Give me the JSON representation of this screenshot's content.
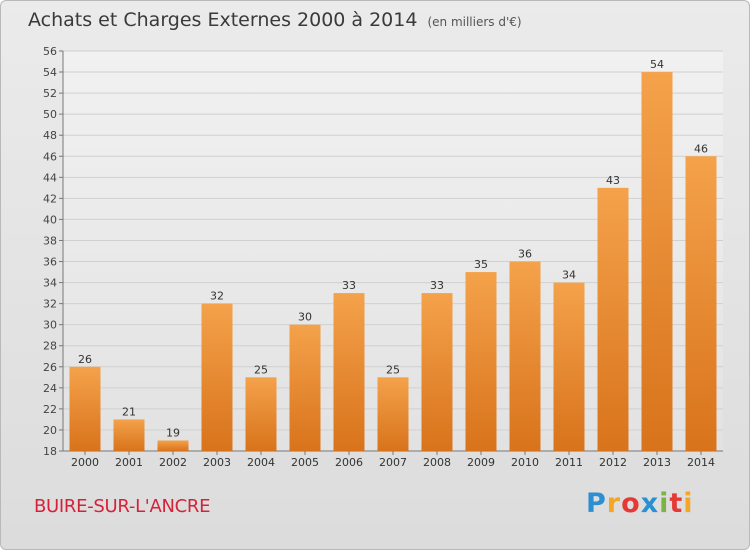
{
  "header": {
    "title": "Achats et Charges Externes 2000 à 2014",
    "subtitle": "(en milliers d'€)"
  },
  "footer": {
    "commune": "BUIRE-SUR-L'ANCRE",
    "logo_letters": [
      "P",
      "r",
      "o",
      "x",
      "i",
      "t",
      "i"
    ],
    "logo_colors": [
      "#2b8fd1",
      "#f5a623",
      "#e53935",
      "#2b8fd1",
      "#7cb342",
      "#e53935",
      "#f5a623"
    ]
  },
  "colors": {
    "bar_top": "#f4a24b",
    "bar_bottom": "#d8731b",
    "title": "#3a3a3a",
    "commune": "#d5223a"
  },
  "chart_data": {
    "type": "bar",
    "title": "Achats et Charges Externes 2000 à 2014",
    "subtitle": "(en milliers d'€)",
    "categories": [
      "2000",
      "2001",
      "2002",
      "2003",
      "2004",
      "2005",
      "2006",
      "2007",
      "2008",
      "2009",
      "2010",
      "2011",
      "2012",
      "2013",
      "2014"
    ],
    "values": [
      26,
      21,
      19,
      32,
      25,
      30,
      33,
      25,
      33,
      35,
      36,
      34,
      43,
      54,
      46
    ],
    "ylim": [
      18,
      56
    ],
    "yticks": [
      18,
      20,
      22,
      24,
      26,
      28,
      30,
      32,
      34,
      36,
      38,
      40,
      42,
      44,
      46,
      48,
      50,
      52,
      54,
      56
    ],
    "grid": true,
    "xlabel": "",
    "ylabel": ""
  }
}
